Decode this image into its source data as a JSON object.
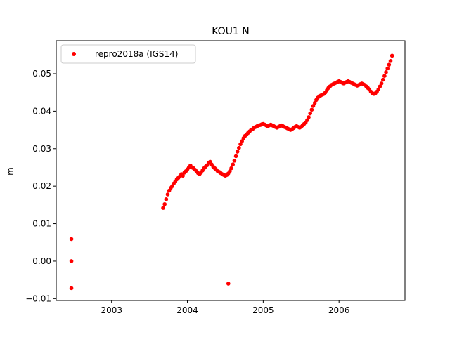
{
  "chart_data": {
    "type": "scatter",
    "title": "KOU1 N",
    "xlabel": "",
    "ylabel": "m",
    "xlim": [
      2002.27,
      2006.87
    ],
    "ylim": [
      -0.0105,
      0.0588
    ],
    "xticks": [
      2003,
      2004,
      2005,
      2006
    ],
    "xtick_labels": [
      "2003",
      "2004",
      "2005",
      "2006"
    ],
    "yticks": [
      -0.01,
      0.0,
      0.01,
      0.02,
      0.03,
      0.04,
      0.05
    ],
    "ytick_labels": [
      "−0.01",
      "0.00",
      "0.01",
      "0.02",
      "0.03",
      "0.04",
      "0.05"
    ],
    "grid": false,
    "legend_position": "upper-left",
    "series": [
      {
        "name": "repro2018a (IGS14)",
        "color": "#ff0000",
        "marker": "circle",
        "points": [
          [
            2002.47,
            0.0059
          ],
          [
            2002.47,
            0.0
          ],
          [
            2002.47,
            -0.0072
          ],
          [
            2004.54,
            -0.006
          ],
          [
            2003.68,
            0.0142
          ],
          [
            2003.7,
            0.0152
          ],
          [
            2003.72,
            0.0165
          ],
          [
            2003.74,
            0.0178
          ],
          [
            2003.76,
            0.0188
          ],
          [
            2003.78,
            0.0195
          ],
          [
            2003.8,
            0.02
          ],
          [
            2003.82,
            0.0207
          ],
          [
            2003.84,
            0.0212
          ],
          [
            2003.86,
            0.0218
          ],
          [
            2003.88,
            0.0222
          ],
          [
            2003.9,
            0.0226
          ],
          [
            2003.92,
            0.0232
          ],
          [
            2003.94,
            0.0228
          ],
          [
            2003.96,
            0.0236
          ],
          [
            2003.98,
            0.024
          ],
          [
            2004.0,
            0.0245
          ],
          [
            2004.02,
            0.025
          ],
          [
            2004.04,
            0.0255
          ],
          [
            2004.06,
            0.025
          ],
          [
            2004.08,
            0.0248
          ],
          [
            2004.1,
            0.0244
          ],
          [
            2004.12,
            0.024
          ],
          [
            2004.14,
            0.0235
          ],
          [
            2004.16,
            0.0232
          ],
          [
            2004.18,
            0.0236
          ],
          [
            2004.2,
            0.0242
          ],
          [
            2004.22,
            0.0248
          ],
          [
            2004.24,
            0.0252
          ],
          [
            2004.26,
            0.0256
          ],
          [
            2004.28,
            0.0262
          ],
          [
            2004.3,
            0.0265
          ],
          [
            2004.32,
            0.0258
          ],
          [
            2004.34,
            0.0252
          ],
          [
            2004.36,
            0.0248
          ],
          [
            2004.38,
            0.0244
          ],
          [
            2004.4,
            0.024
          ],
          [
            2004.42,
            0.0238
          ],
          [
            2004.44,
            0.0235
          ],
          [
            2004.46,
            0.0232
          ],
          [
            2004.48,
            0.023
          ],
          [
            2004.5,
            0.0228
          ],
          [
            2004.52,
            0.023
          ],
          [
            2004.54,
            0.0234
          ],
          [
            2004.56,
            0.024
          ],
          [
            2004.58,
            0.0248
          ],
          [
            2004.6,
            0.0258
          ],
          [
            2004.62,
            0.0268
          ],
          [
            2004.64,
            0.028
          ],
          [
            2004.66,
            0.0292
          ],
          [
            2004.68,
            0.0302
          ],
          [
            2004.7,
            0.0312
          ],
          [
            2004.72,
            0.032
          ],
          [
            2004.74,
            0.0328
          ],
          [
            2004.76,
            0.0334
          ],
          [
            2004.78,
            0.0338
          ],
          [
            2004.8,
            0.0342
          ],
          [
            2004.82,
            0.0346
          ],
          [
            2004.84,
            0.035
          ],
          [
            2004.86,
            0.0352
          ],
          [
            2004.88,
            0.0356
          ],
          [
            2004.9,
            0.0358
          ],
          [
            2004.92,
            0.036
          ],
          [
            2004.94,
            0.0362
          ],
          [
            2004.96,
            0.0363
          ],
          [
            2004.98,
            0.0365
          ],
          [
            2005.0,
            0.0366
          ],
          [
            2005.02,
            0.0364
          ],
          [
            2005.04,
            0.0362
          ],
          [
            2005.06,
            0.036
          ],
          [
            2005.08,
            0.0362
          ],
          [
            2005.1,
            0.0364
          ],
          [
            2005.12,
            0.0362
          ],
          [
            2005.14,
            0.036
          ],
          [
            2005.16,
            0.0358
          ],
          [
            2005.18,
            0.0356
          ],
          [
            2005.2,
            0.0358
          ],
          [
            2005.22,
            0.036
          ],
          [
            2005.24,
            0.0362
          ],
          [
            2005.26,
            0.036
          ],
          [
            2005.28,
            0.0358
          ],
          [
            2005.3,
            0.0356
          ],
          [
            2005.32,
            0.0354
          ],
          [
            2005.34,
            0.0352
          ],
          [
            2005.36,
            0.035
          ],
          [
            2005.38,
            0.0352
          ],
          [
            2005.4,
            0.0355
          ],
          [
            2005.42,
            0.0358
          ],
          [
            2005.44,
            0.036
          ],
          [
            2005.46,
            0.0358
          ],
          [
            2005.48,
            0.0356
          ],
          [
            2005.5,
            0.0358
          ],
          [
            2005.52,
            0.0362
          ],
          [
            2005.54,
            0.0366
          ],
          [
            2005.56,
            0.037
          ],
          [
            2005.58,
            0.0376
          ],
          [
            2005.6,
            0.0384
          ],
          [
            2005.62,
            0.0394
          ],
          [
            2005.64,
            0.0404
          ],
          [
            2005.66,
            0.0414
          ],
          [
            2005.68,
            0.0422
          ],
          [
            2005.7,
            0.043
          ],
          [
            2005.72,
            0.0436
          ],
          [
            2005.74,
            0.044
          ],
          [
            2005.76,
            0.0442
          ],
          [
            2005.78,
            0.0444
          ],
          [
            2005.8,
            0.0446
          ],
          [
            2005.82,
            0.045
          ],
          [
            2005.84,
            0.0456
          ],
          [
            2005.86,
            0.0462
          ],
          [
            2005.88,
            0.0466
          ],
          [
            2005.9,
            0.047
          ],
          [
            2005.92,
            0.0472
          ],
          [
            2005.94,
            0.0474
          ],
          [
            2005.96,
            0.0476
          ],
          [
            2005.98,
            0.0478
          ],
          [
            2006.0,
            0.048
          ],
          [
            2006.02,
            0.0478
          ],
          [
            2006.04,
            0.0476
          ],
          [
            2006.06,
            0.0474
          ],
          [
            2006.08,
            0.0476
          ],
          [
            2006.1,
            0.0478
          ],
          [
            2006.12,
            0.048
          ],
          [
            2006.14,
            0.0478
          ],
          [
            2006.16,
            0.0476
          ],
          [
            2006.18,
            0.0474
          ],
          [
            2006.2,
            0.0472
          ],
          [
            2006.22,
            0.047
          ],
          [
            2006.24,
            0.0468
          ],
          [
            2006.26,
            0.047
          ],
          [
            2006.28,
            0.0472
          ],
          [
            2006.3,
            0.0474
          ],
          [
            2006.32,
            0.0472
          ],
          [
            2006.34,
            0.047
          ],
          [
            2006.36,
            0.0466
          ],
          [
            2006.38,
            0.0462
          ],
          [
            2006.4,
            0.0458
          ],
          [
            2006.42,
            0.0452
          ],
          [
            2006.44,
            0.0448
          ],
          [
            2006.46,
            0.0446
          ],
          [
            2006.48,
            0.0448
          ],
          [
            2006.5,
            0.0452
          ],
          [
            2006.52,
            0.0458
          ],
          [
            2006.54,
            0.0466
          ],
          [
            2006.56,
            0.0474
          ],
          [
            2006.58,
            0.0484
          ],
          [
            2006.6,
            0.0494
          ],
          [
            2006.62,
            0.0504
          ],
          [
            2006.64,
            0.0514
          ],
          [
            2006.66,
            0.0524
          ],
          [
            2006.68,
            0.0534
          ],
          [
            2006.7,
            0.0548
          ]
        ]
      }
    ]
  }
}
